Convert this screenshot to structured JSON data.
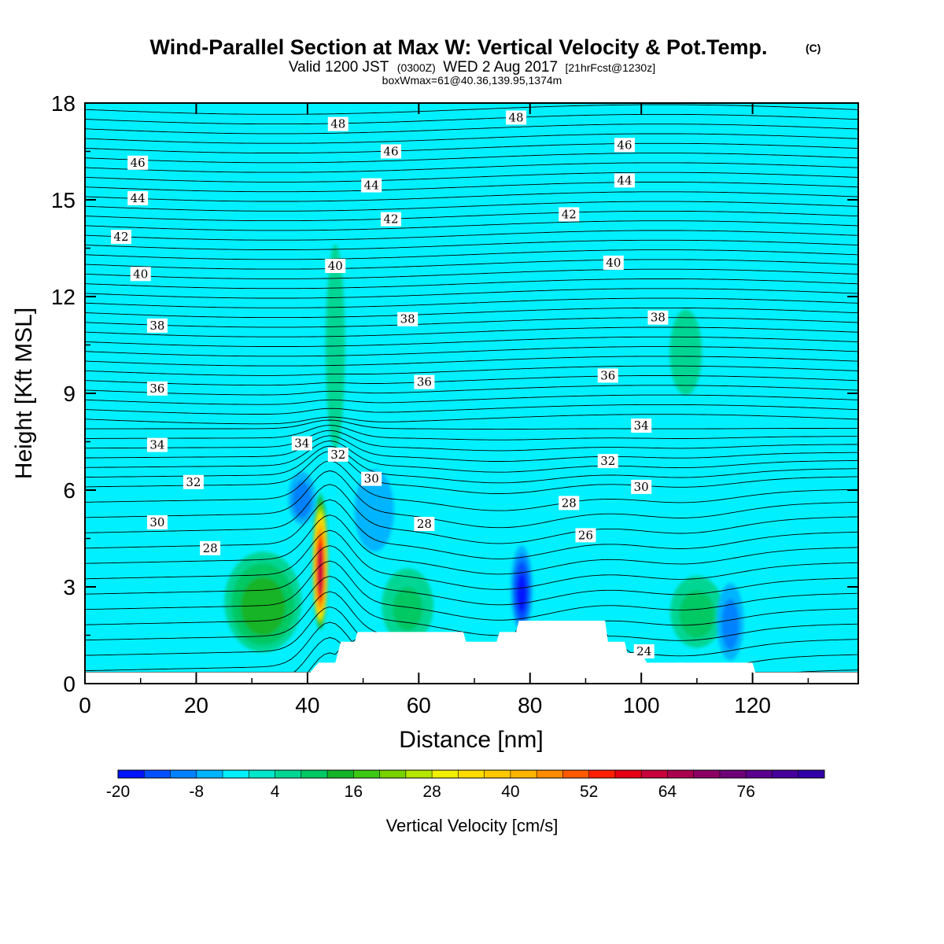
{
  "chart_data": {
    "type": "heatmap",
    "title": "Wind-Parallel Section at Max W: Vertical Velocity & Pot.Temp.",
    "title_mark": "(C)",
    "subtitle": {
      "part1": "Valid 1200 JST",
      "part2": "(0300Z)",
      "part3": "WED 2 Aug 2017",
      "part4": "[21hrFcst@1230z]"
    },
    "annotation": "boxWmax=61@40.36,139.95,1374m",
    "xlabel": "Distance [nm]",
    "ylabel": "Height [Kft MSL]",
    "xlim": [
      0,
      139
    ],
    "ylim": [
      0,
      18
    ],
    "xticks": [
      0,
      20,
      40,
      60,
      80,
      100,
      120
    ],
    "yticks": [
      0,
      3,
      6,
      9,
      12,
      15,
      18
    ],
    "background_color": "#00f0ff",
    "colorbar": {
      "label": "Vertical Velocity [cm/s]",
      "min": -20,
      "max": 88,
      "step": 4,
      "tick_values": [
        -20,
        -8,
        4,
        16,
        28,
        40,
        52,
        64,
        76
      ],
      "tick_labels": [
        "-20",
        "-8",
        "4",
        "16",
        "28",
        "40",
        "52",
        "64",
        "76"
      ],
      "colors": [
        "#0014ff",
        "#0050ff",
        "#0082ff",
        "#00b4ff",
        "#00f0ff",
        "#00e6c8",
        "#00d694",
        "#00c864",
        "#14b428",
        "#3cc814",
        "#78d200",
        "#b4e600",
        "#f0f000",
        "#ffdc00",
        "#ffc800",
        "#ffb400",
        "#ff8c00",
        "#ff5a00",
        "#ff1e00",
        "#e60014",
        "#c8003c",
        "#aa0050",
        "#8c0064",
        "#6e0078",
        "#5a008c",
        "#46009c",
        "#3200a8"
      ]
    },
    "w_features": [
      {
        "kind": "updraft",
        "x": 42.3,
        "y": 3.8,
        "rx": 1.5,
        "ry": 2.2,
        "peak": 61
      },
      {
        "kind": "updraft",
        "x": 32,
        "y": 2.6,
        "rx": 8,
        "ry": 1.8,
        "peak": 14
      },
      {
        "kind": "updraft",
        "x": 58,
        "y": 2.5,
        "rx": 6,
        "ry": 1.5,
        "peak": 8
      },
      {
        "kind": "updraft",
        "x": 110,
        "y": 2.3,
        "rx": 6,
        "ry": 1.4,
        "peak": 9
      },
      {
        "kind": "updraft",
        "x": 45,
        "y": 11,
        "rx": 3,
        "ry": 5.5,
        "peak": 4
      },
      {
        "kind": "updraft",
        "x": 108,
        "y": 10.5,
        "rx": 5,
        "ry": 2.3,
        "peak": 4
      },
      {
        "kind": "downdraft",
        "x": 78.5,
        "y": 3.0,
        "rx": 2.2,
        "ry": 1.5,
        "peak": -17
      },
      {
        "kind": "downdraft",
        "x": 39,
        "y": 5.8,
        "rx": 3,
        "ry": 1.0,
        "peak": -10
      },
      {
        "kind": "downdraft",
        "x": 52,
        "y": 5.5,
        "rx": 5,
        "ry": 1.8,
        "peak": -6
      },
      {
        "kind": "downdraft",
        "x": 116,
        "y": 2.0,
        "rx": 3,
        "ry": 1.5,
        "peak": -9
      }
    ],
    "theta_levels": [
      24,
      26,
      28,
      30,
      32,
      34,
      36,
      38,
      40,
      42,
      44,
      46,
      48
    ],
    "theta_labels": [
      {
        "text": "48",
        "x": 45.5,
        "y": 17.35
      },
      {
        "text": "48",
        "x": 77.5,
        "y": 17.55
      },
      {
        "text": "46",
        "x": 9.5,
        "y": 16.15
      },
      {
        "text": "46",
        "x": 55,
        "y": 16.5
      },
      {
        "text": "46",
        "x": 97,
        "y": 16.7
      },
      {
        "text": "44",
        "x": 9.5,
        "y": 15.05
      },
      {
        "text": "44",
        "x": 51.5,
        "y": 15.45
      },
      {
        "text": "44",
        "x": 97,
        "y": 15.6
      },
      {
        "text": "42",
        "x": 6.5,
        "y": 13.85
      },
      {
        "text": "42",
        "x": 55,
        "y": 14.4
      },
      {
        "text": "42",
        "x": 87,
        "y": 14.55
      },
      {
        "text": "40",
        "x": 10,
        "y": 12.7
      },
      {
        "text": "40",
        "x": 45,
        "y": 12.95
      },
      {
        "text": "40",
        "x": 95,
        "y": 13.05
      },
      {
        "text": "38",
        "x": 13,
        "y": 11.1
      },
      {
        "text": "38",
        "x": 58,
        "y": 11.3
      },
      {
        "text": "38",
        "x": 103,
        "y": 11.35
      },
      {
        "text": "36",
        "x": 13,
        "y": 9.15
      },
      {
        "text": "36",
        "x": 61,
        "y": 9.35
      },
      {
        "text": "36",
        "x": 94,
        "y": 9.55
      },
      {
        "text": "34",
        "x": 13,
        "y": 7.4
      },
      {
        "text": "34",
        "x": 39,
        "y": 7.45
      },
      {
        "text": "34",
        "x": 100,
        "y": 8.0
      },
      {
        "text": "32",
        "x": 19.5,
        "y": 6.25
      },
      {
        "text": "32",
        "x": 45.5,
        "y": 7.1
      },
      {
        "text": "32",
        "x": 94,
        "y": 6.9
      },
      {
        "text": "30",
        "x": 13,
        "y": 5.0
      },
      {
        "text": "30",
        "x": 51.5,
        "y": 6.35
      },
      {
        "text": "30",
        "x": 100,
        "y": 6.1
      },
      {
        "text": "28",
        "x": 22.5,
        "y": 4.2
      },
      {
        "text": "28",
        "x": 61,
        "y": 4.95
      },
      {
        "text": "28",
        "x": 87,
        "y": 5.6
      },
      {
        "text": "26",
        "x": 90,
        "y": 4.6
      },
      {
        "text": "24",
        "x": 100.5,
        "y": 1.0
      }
    ],
    "terrain": [
      [
        0,
        0.35
      ],
      [
        40.5,
        0.35
      ],
      [
        42,
        0.65
      ],
      [
        45,
        0.65
      ],
      [
        46,
        1.3
      ],
      [
        48.5,
        1.3
      ],
      [
        49,
        1.6
      ],
      [
        68,
        1.6
      ],
      [
        68.5,
        1.3
      ],
      [
        74,
        1.3
      ],
      [
        74.5,
        1.6
      ],
      [
        77.5,
        1.6
      ],
      [
        78,
        1.95
      ],
      [
        93.5,
        1.95
      ],
      [
        94,
        1.3
      ],
      [
        97,
        1.3
      ],
      [
        97.5,
        0.95
      ],
      [
        100,
        0.95
      ],
      [
        101,
        0.65
      ],
      [
        120,
        0.65
      ],
      [
        120.5,
        0.35
      ],
      [
        139,
        0.35
      ]
    ]
  }
}
